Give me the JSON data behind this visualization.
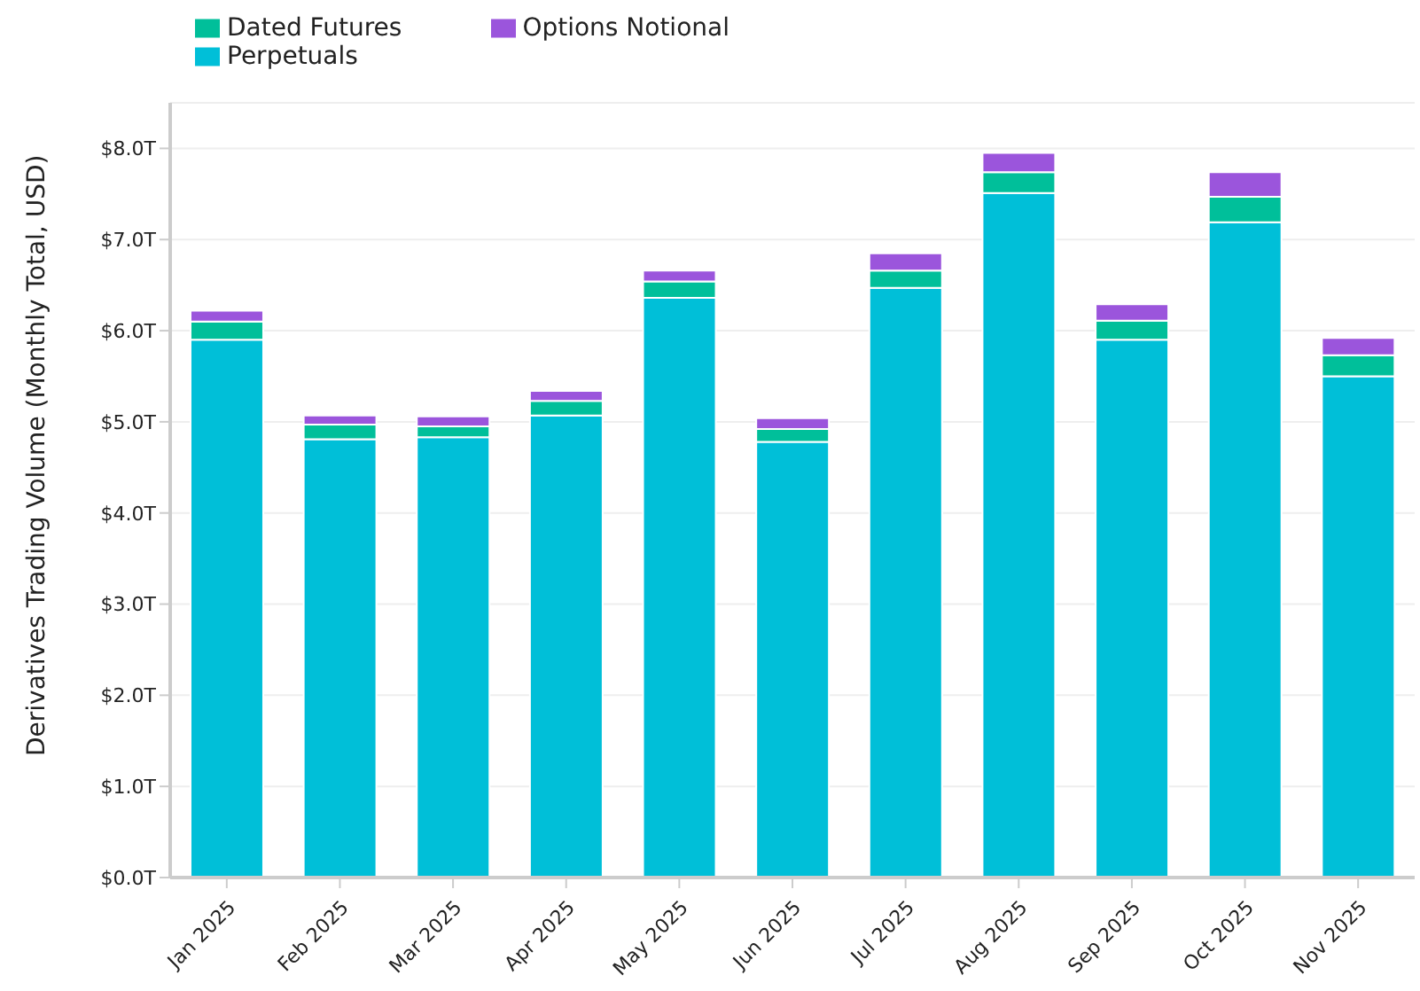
{
  "chart_data": {
    "type": "bar",
    "stacked": true,
    "ylabel": "Derivatives Trading Volume (Monthly Total, USD)",
    "categories": [
      "Jan 2025",
      "Feb 2025",
      "Mar 2025",
      "Apr 2025",
      "May 2025",
      "Jun 2025",
      "Jul 2025",
      "Aug 2025",
      "Sep 2025",
      "Oct 2025",
      "Nov 2025"
    ],
    "series": [
      {
        "name": "Perpetuals",
        "color": "#00bfd8",
        "values": [
          5.9,
          4.81,
          4.83,
          5.07,
          6.36,
          4.78,
          6.47,
          7.51,
          5.9,
          7.19,
          5.5
        ]
      },
      {
        "name": "Dated Futures",
        "color": "#00bf9a",
        "values": [
          0.2,
          0.16,
          0.12,
          0.16,
          0.18,
          0.14,
          0.19,
          0.23,
          0.21,
          0.28,
          0.23
        ]
      },
      {
        "name": "Options Notional",
        "color": "#9b55dc",
        "values": [
          0.12,
          0.1,
          0.11,
          0.11,
          0.12,
          0.12,
          0.19,
          0.21,
          0.18,
          0.27,
          0.19
        ]
      }
    ],
    "ylim": [
      0,
      8.5
    ],
    "yticks": [
      {
        "value": 0,
        "label": "$0.0T"
      },
      {
        "value": 1,
        "label": "$1.0T"
      },
      {
        "value": 2,
        "label": "$2.0T"
      },
      {
        "value": 3,
        "label": "$3.0T"
      },
      {
        "value": 4,
        "label": "$4.0T"
      },
      {
        "value": 5,
        "label": "$5.0T"
      },
      {
        "value": 6,
        "label": "$6.0T"
      },
      {
        "value": 7,
        "label": "$7.0T"
      },
      {
        "value": 8,
        "label": "$8.0T"
      }
    ],
    "grid": "y",
    "legend": "top left"
  }
}
